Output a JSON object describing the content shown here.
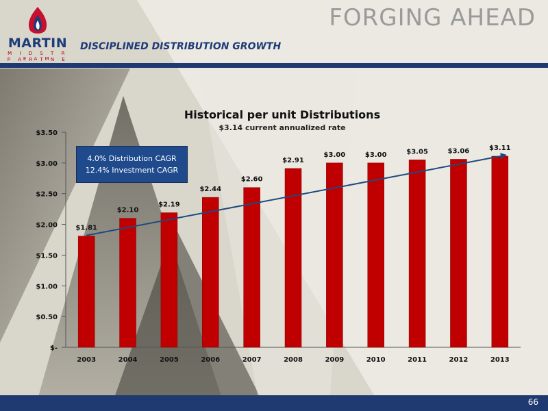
{
  "header": {
    "title": "FORGING AHEAD",
    "subtitle": "DISCIPLINED DISTRIBUTION GROWTH"
  },
  "logo": {
    "word": "MARTIN",
    "line1": "M I D S T R E A M",
    "line2": "P A R T N E R S"
  },
  "callout": {
    "line1": "4.0% Distribution CAGR",
    "line2": "12.4% Investment CAGR"
  },
  "footer": {
    "page_number": "66"
  },
  "colors": {
    "bar": "#c00000",
    "trend": "#1f497d",
    "brand_blue": "#1f3a70"
  },
  "chart_data": {
    "type": "bar",
    "title": "Historical per unit Distributions",
    "subtitle": "$3.14 current annualized rate",
    "categories": [
      "2003",
      "2004",
      "2005",
      "2006",
      "2007",
      "2008",
      "2009",
      "2010",
      "2011",
      "2012",
      "2013"
    ],
    "values": [
      1.81,
      2.1,
      2.19,
      2.44,
      2.6,
      2.91,
      3.0,
      3.0,
      3.05,
      3.06,
      3.11
    ],
    "value_labels": [
      "$1.81",
      "$2.10",
      "$2.19",
      "$2.44",
      "$2.60",
      "$2.91",
      "$3.00",
      "$3.00",
      "$3.05",
      "$3.06",
      "$3.11"
    ],
    "yticks": [
      0,
      0.5,
      1.0,
      1.5,
      2.0,
      2.5,
      3.0,
      3.5
    ],
    "ytick_labels": [
      "$-",
      "$0.50",
      "$1.00",
      "$1.50",
      "$2.00",
      "$2.50",
      "$3.00",
      "$3.50"
    ],
    "ylim": [
      0,
      3.5
    ],
    "trendline": {
      "from": 1.81,
      "to": 3.11
    },
    "grid": false,
    "legend": "none"
  }
}
